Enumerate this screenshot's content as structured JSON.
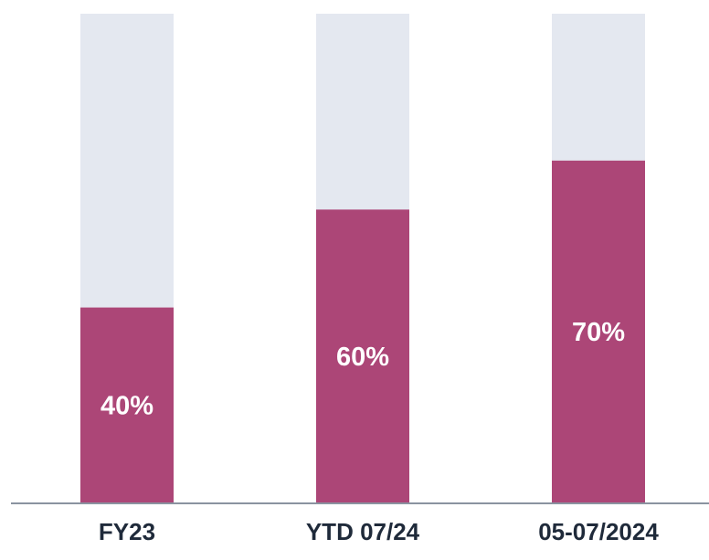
{
  "chart_data": {
    "type": "bar",
    "categories": [
      "FY23",
      "YTD 07/24",
      "05-07/2024"
    ],
    "values": [
      40,
      60,
      70
    ],
    "value_labels": [
      "40%",
      "60%",
      "70%"
    ],
    "color": "#ac4677",
    "track_color": "#e4e8f0",
    "ylim": [
      0,
      100
    ]
  }
}
